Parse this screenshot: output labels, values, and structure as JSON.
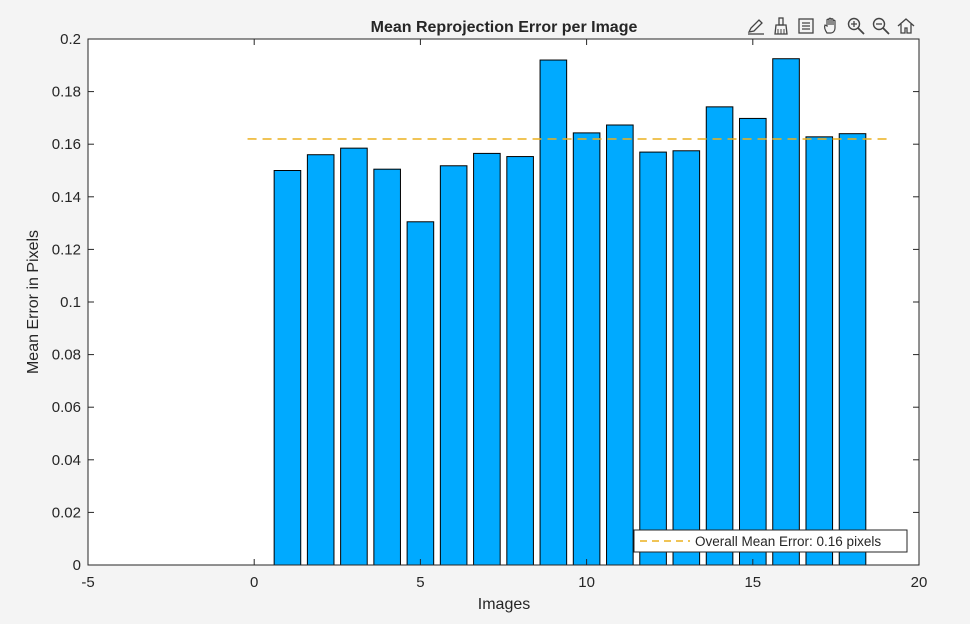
{
  "window": {
    "background": "#f4f4f4"
  },
  "toolbar": {
    "buttons": [
      {
        "name": "data-tips-icon",
        "tooltip": "Data Tips"
      },
      {
        "name": "brush-icon",
        "tooltip": "Brush"
      },
      {
        "name": "legend-icon",
        "tooltip": "Insert Legend"
      },
      {
        "name": "pan-icon",
        "tooltip": "Pan"
      },
      {
        "name": "zoom-in-icon",
        "tooltip": "Zoom In"
      },
      {
        "name": "zoom-out-icon",
        "tooltip": "Zoom Out"
      },
      {
        "name": "home-icon",
        "tooltip": "Restore View"
      }
    ]
  },
  "chart_data": {
    "type": "bar",
    "title": "Mean Reprojection Error per Image",
    "xlabel": "Images",
    "ylabel": "Mean Error in Pixels",
    "x": [
      1,
      2,
      3,
      4,
      5,
      6,
      7,
      8,
      9,
      10,
      11,
      12,
      13,
      14,
      15,
      16,
      17,
      18
    ],
    "values": [
      0.15,
      0.156,
      0.1585,
      0.1505,
      0.1305,
      0.1518,
      0.1565,
      0.1553,
      0.192,
      0.1643,
      0.1673,
      0.157,
      0.1575,
      0.1742,
      0.1698,
      0.1925,
      0.1628,
      0.164
    ],
    "xlim": [
      -5,
      20
    ],
    "ylim": [
      0,
      0.2
    ],
    "xticks": [
      "-5",
      "0",
      "5",
      "10",
      "15",
      "20"
    ],
    "yticks": [
      "0",
      "0.02",
      "0.04",
      "0.06",
      "0.08",
      "0.1",
      "0.12",
      "0.14",
      "0.16",
      "0.18",
      "0.2"
    ],
    "bar_color": "#00aaff",
    "mean_line": {
      "value": 0.162,
      "x_start": -0.2,
      "x_end": 19.1,
      "color": "#ecb01f",
      "style": "dashed"
    },
    "legend": {
      "entries": [
        "Overall Mean Error: 0.16 pixels"
      ],
      "placement": "bottom-right"
    },
    "grid": false
  }
}
